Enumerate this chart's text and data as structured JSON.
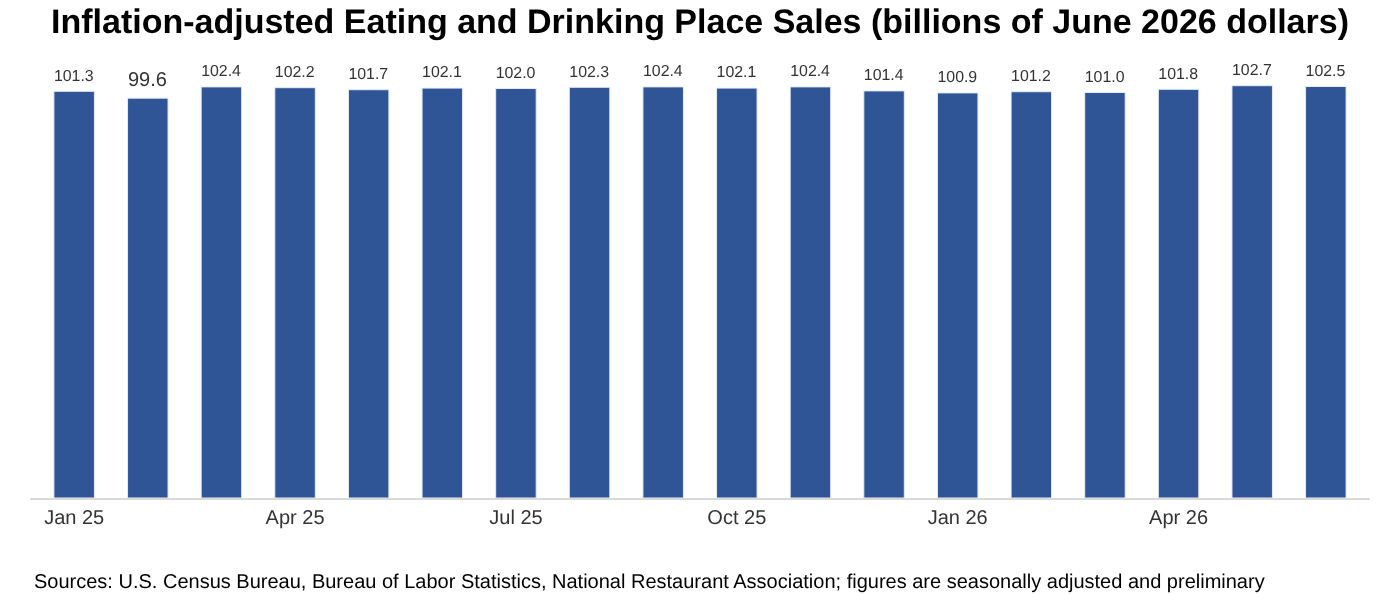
{
  "chart_data": {
    "type": "bar",
    "title": "Inflation-adjusted Eating and Drinking Place Sales (billions of June 2026 dollars)",
    "categories": [
      "Jan 25",
      null,
      null,
      "Apr 25",
      null,
      null,
      "Jul 25",
      null,
      null,
      "Oct 25",
      null,
      null,
      "Jan 26",
      null,
      null,
      "Apr 26",
      null,
      null
    ],
    "values": [
      101.3,
      99.6,
      102.4,
      102.2,
      101.7,
      102.1,
      102.0,
      102.3,
      102.4,
      102.1,
      102.4,
      101.4,
      100.9,
      101.2,
      101.0,
      101.8,
      102.7,
      102.5
    ],
    "value_labels": [
      "101.3",
      "99.6",
      "102.4",
      "102.2",
      "101.7",
      "102.1",
      "102.0",
      "102.3",
      "102.4",
      "102.1",
      "102.4",
      "101.4",
      "100.9",
      "101.2",
      "101.0",
      "101.8",
      "102.7",
      "102.5"
    ],
    "color": "#2f5597",
    "tick_labels": "x",
    "annotations": [
      "Sources: U.S. Census Bureau, Bureau of Labor Statistics, National Restaurant Association; figures are seasonally adjusted and preliminary"
    ]
  }
}
